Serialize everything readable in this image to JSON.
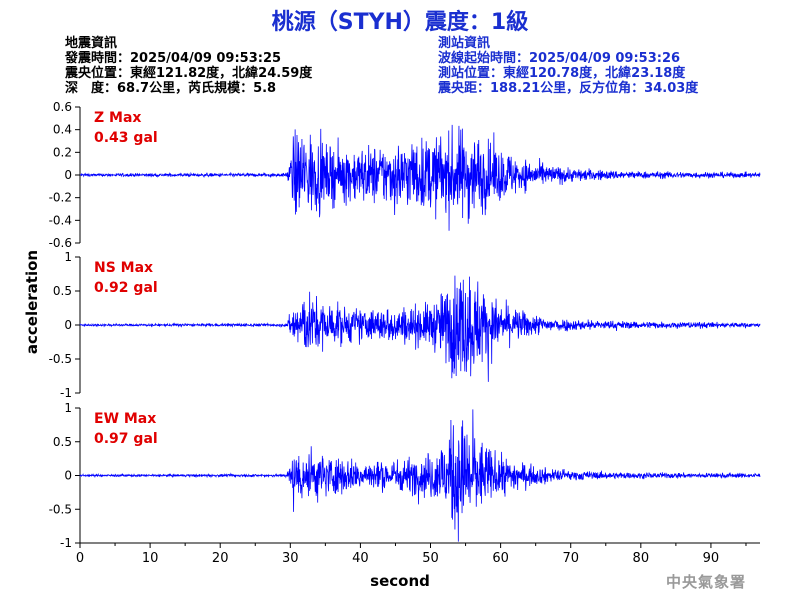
{
  "title": "桃源（STYH）震度：1級",
  "event_info": {
    "heading": "地震資訊",
    "origin_time": "發震時間：2025/04/09 09:53:25",
    "epicenter": "震央位置：東經121.82度，北緯24.59度",
    "depth_magnitude": "深　度：68.7公里，芮氏規模：5.8"
  },
  "station_info": {
    "heading": "測站資訊",
    "wave_start": "波線起始時間：2025/04/09 09:53:26",
    "location": "測站位置：東經120.78度，北緯23.18度",
    "distance_azimuth": "震央距：188.21公里，反方位角：34.03度"
  },
  "footer": "中央氣象署",
  "colors": {
    "title": "#1a2fd0",
    "trace": "#0000ff",
    "max_label": "#e00000",
    "axis": "#000000"
  },
  "chart_data": {
    "type": "line",
    "xlabel": "second",
    "ylabel": "acceleration",
    "xlim": [
      0,
      97
    ],
    "x_ticks": [
      "0",
      "10",
      "20",
      "30",
      "40",
      "50",
      "60",
      "70",
      "80",
      "90"
    ],
    "grid": false,
    "panels": [
      {
        "name": "Z",
        "max_label": "Z Max",
        "max_value": "0.43 gal",
        "ylim": [
          -0.6,
          0.6
        ],
        "y_ticks": [
          "0.6",
          "0.4",
          "0.2",
          "0",
          "-0.2",
          "-0.4",
          "-0.6"
        ],
        "envelope": {
          "t": [
            0,
            29.5,
            30.5,
            32,
            35,
            38,
            41,
            44,
            47,
            50,
            53,
            55,
            57,
            60,
            63,
            66,
            70,
            75,
            80,
            90,
            97
          ],
          "a": [
            0.012,
            0.015,
            0.34,
            0.4,
            0.24,
            0.23,
            0.24,
            0.26,
            0.29,
            0.31,
            0.36,
            0.4,
            0.33,
            0.22,
            0.14,
            0.09,
            0.06,
            0.04,
            0.03,
            0.025,
            0.02
          ]
        }
      },
      {
        "name": "NS",
        "max_label": "NS Max",
        "max_value": "0.92 gal",
        "ylim": [
          -1,
          1
        ],
        "y_ticks": [
          "1",
          "0.5",
          "0",
          "-0.5",
          "-1"
        ],
        "envelope": {
          "t": [
            0,
            29.5,
            30.5,
            32,
            35,
            38,
            41,
            44,
            47,
            50,
            52,
            54,
            56,
            58,
            60,
            63,
            66,
            70,
            75,
            80,
            90,
            97
          ],
          "a": [
            0.015,
            0.02,
            0.3,
            0.45,
            0.32,
            0.25,
            0.22,
            0.24,
            0.27,
            0.3,
            0.5,
            0.8,
            0.75,
            0.45,
            0.3,
            0.2,
            0.12,
            0.08,
            0.06,
            0.05,
            0.04,
            0.03
          ]
        }
      },
      {
        "name": "EW",
        "max_label": "EW Max",
        "max_value": "0.97 gal",
        "ylim": [
          -1,
          1
        ],
        "y_ticks": [
          "1",
          "0.5",
          "0",
          "-0.5",
          "-1"
        ],
        "envelope": {
          "t": [
            0,
            29.5,
            30.5,
            32,
            35,
            38,
            41,
            44,
            47,
            50,
            52,
            54,
            56,
            58,
            60,
            63,
            66,
            70,
            75,
            80,
            90,
            97
          ],
          "a": [
            0.015,
            0.02,
            0.32,
            0.42,
            0.3,
            0.24,
            0.2,
            0.22,
            0.25,
            0.32,
            0.55,
            0.85,
            0.7,
            0.4,
            0.28,
            0.18,
            0.11,
            0.07,
            0.05,
            0.04,
            0.035,
            0.03
          ]
        }
      }
    ]
  }
}
